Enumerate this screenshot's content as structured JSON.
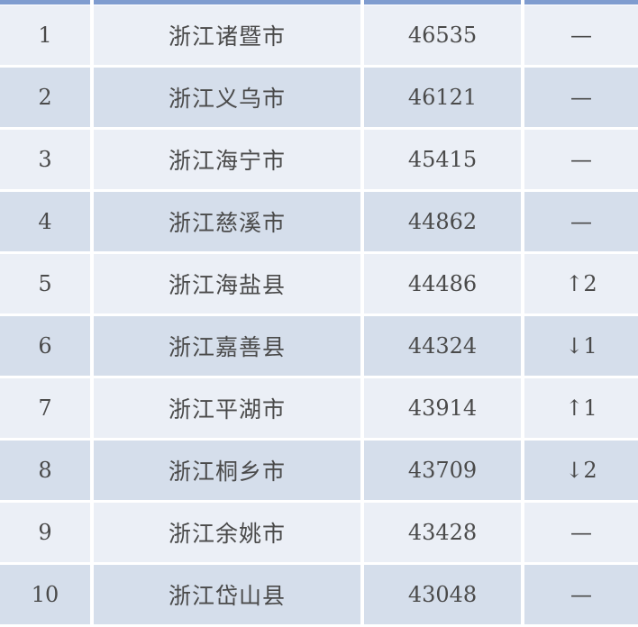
{
  "colors": {
    "header_bar": "#7f9ccf",
    "row_light": "#ebeff6",
    "row_dark": "#d5deeb"
  },
  "rows": [
    {
      "rank": "1",
      "city": "浙江诸暨市",
      "value": "46535",
      "change": "—"
    },
    {
      "rank": "2",
      "city": "浙江义乌市",
      "value": "46121",
      "change": "—"
    },
    {
      "rank": "3",
      "city": "浙江海宁市",
      "value": "45415",
      "change": "—"
    },
    {
      "rank": "4",
      "city": "浙江慈溪市",
      "value": "44862",
      "change": "—"
    },
    {
      "rank": "5",
      "city": "浙江海盐县",
      "value": "44486",
      "change": "↑2"
    },
    {
      "rank": "6",
      "city": "浙江嘉善县",
      "value": "44324",
      "change": "↓1"
    },
    {
      "rank": "7",
      "city": "浙江平湖市",
      "value": "43914",
      "change": "↑1"
    },
    {
      "rank": "8",
      "city": "浙江桐乡市",
      "value": "43709",
      "change": "↓2"
    },
    {
      "rank": "9",
      "city": "浙江余姚市",
      "value": "43428",
      "change": "—"
    },
    {
      "rank": "10",
      "city": "浙江岱山县",
      "value": "43048",
      "change": "—"
    }
  ]
}
